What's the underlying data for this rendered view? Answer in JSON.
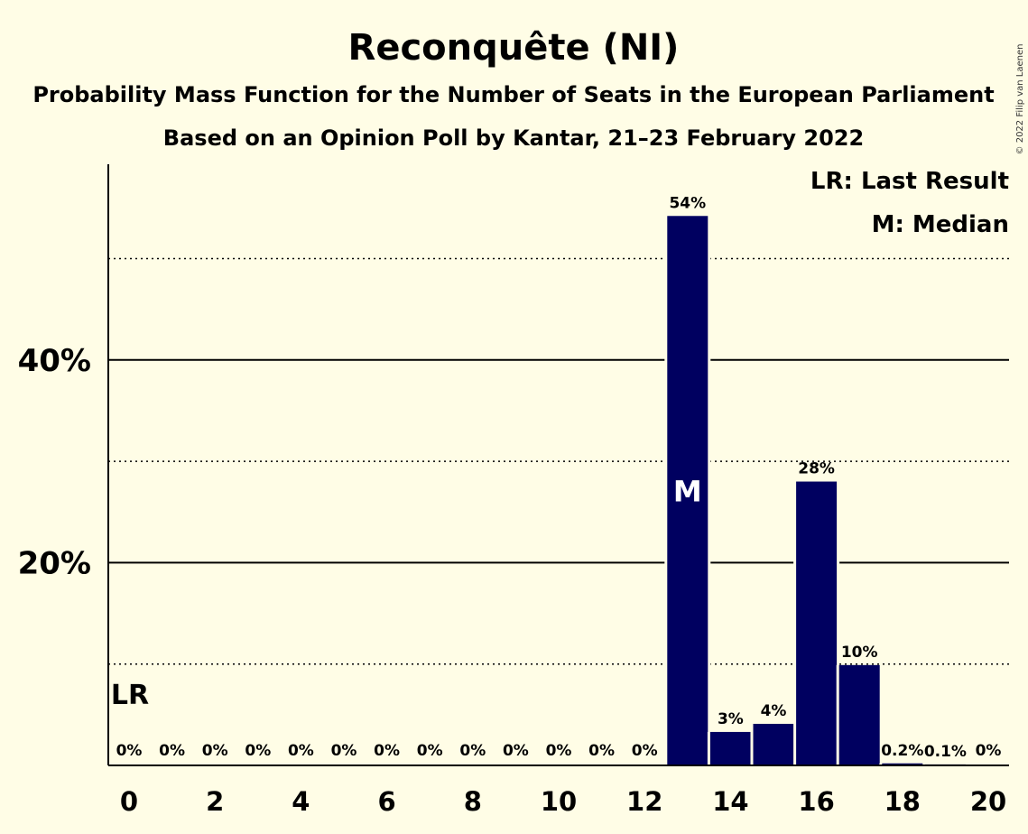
{
  "chart_data": {
    "type": "bar",
    "title": "Reconquête (NI)",
    "subtitle_1": "Probability Mass Function for the Number of Seats in the European Parliament",
    "subtitle_2": "Based on an Opinion Poll by Kantar, 21–23 February 2022",
    "copyright": "© 2022 Filip van Laenen",
    "x": [
      0,
      1,
      2,
      3,
      4,
      5,
      6,
      7,
      8,
      9,
      10,
      11,
      12,
      13,
      14,
      15,
      16,
      17,
      18,
      19,
      20
    ],
    "values": [
      0,
      0,
      0,
      0,
      0,
      0,
      0,
      0,
      0,
      0,
      0,
      0,
      0,
      54.2,
      3.3,
      4.1,
      28.0,
      9.9,
      0.2,
      0.1,
      0
    ],
    "value_labels": [
      "0%",
      "0%",
      "0%",
      "0%",
      "0%",
      "0%",
      "0%",
      "0%",
      "0%",
      "0%",
      "0%",
      "0%",
      "0%",
      "54%",
      "3%",
      "4%",
      "28%",
      "10%",
      "0.2%",
      "0.1%",
      "0%"
    ],
    "x_tick_labels": [
      "0",
      "2",
      "4",
      "6",
      "8",
      "10",
      "12",
      "14",
      "16",
      "18",
      "20"
    ],
    "y_ticks": [
      {
        "value": 20,
        "label": "20%"
      },
      {
        "value": 40,
        "label": "40%"
      }
    ],
    "ylim": [
      0,
      59.3
    ],
    "last_result_seats": 0,
    "last_result_label": "LR",
    "median_seats": 13,
    "median_label": "M",
    "legend": [
      "LR: Last Result",
      "M: Median"
    ],
    "legend_position": "top-right",
    "bar_color": "#000060"
  }
}
